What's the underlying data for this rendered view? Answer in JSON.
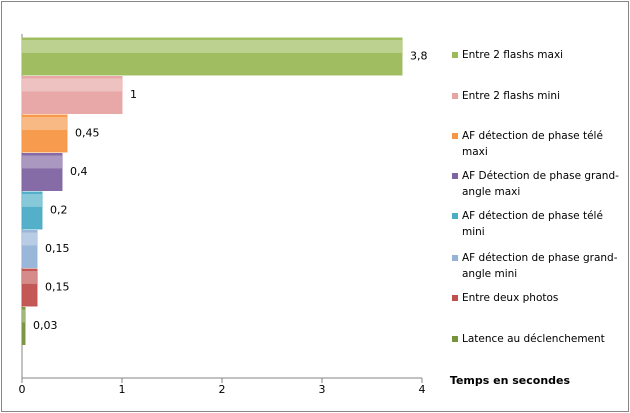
{
  "chart_data": {
    "type": "hbar",
    "x_label": "Temps en secondes",
    "categories": [
      "Entre 2 flashs maxi",
      "Entre 2 flashs mini",
      "AF détection de phase télé maxi",
      "AF Détection de phase grand-angle maxi",
      "AF détection de phase télé mini",
      "AF détection de phase grand-angle mini",
      "Entre deux photos",
      "Latence au déclenchement"
    ],
    "values": [
      3.8,
      1,
      0.45,
      0.4,
      0.2,
      0.15,
      0.15,
      0.03
    ],
    "value_labels": [
      "3,8",
      "1",
      "0,45",
      "0,4",
      "0,2",
      "0,15",
      "0,15",
      "0,03"
    ],
    "colors": [
      "#9bbb59",
      "#e6a3a2",
      "#f79646",
      "#8064a2",
      "#4bacc6",
      "#95b3d7",
      "#c0504d",
      "#77933c"
    ],
    "xlim": [
      0,
      4
    ],
    "xticks": [
      0,
      1,
      2,
      3,
      4
    ]
  }
}
